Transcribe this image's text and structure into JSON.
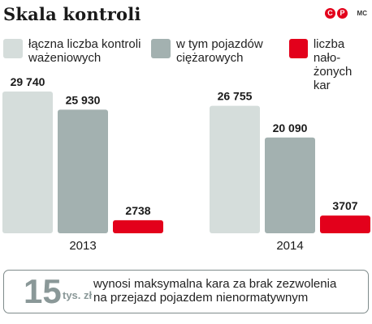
{
  "header": {
    "title": "Skala kontroli",
    "brand_letters": [
      "C",
      "P"
    ],
    "credit": "MC"
  },
  "colors": {
    "series": [
      "#d5dddb",
      "#a3b1b0",
      "#e3001b"
    ],
    "infobox_text": "#8a9898"
  },
  "chart_data": {
    "type": "bar",
    "categories": [
      "2013",
      "2014"
    ],
    "series": [
      {
        "name": "łączna liczba kontroli\nważeniowych",
        "values": [
          29740,
          26755
        ],
        "labels": [
          "29 740",
          "26 755"
        ]
      },
      {
        "name": "w tym pojazdów\nciężarowych",
        "values": [
          25930,
          20090
        ],
        "labels": [
          "25 930",
          "20 090"
        ]
      },
      {
        "name": "liczba nało-\nżonych kar",
        "values": [
          2738,
          3707
        ],
        "labels": [
          "2738",
          "3707"
        ]
      }
    ],
    "ylim": [
      0,
      29740
    ],
    "grid": false,
    "legend_position": "top"
  },
  "info_box": {
    "number": "15",
    "unit": "tys. zł",
    "text": "wynosi maksymalna kara za brak zezwolenia\nna przejazd pojazdem nienormatywnym"
  }
}
